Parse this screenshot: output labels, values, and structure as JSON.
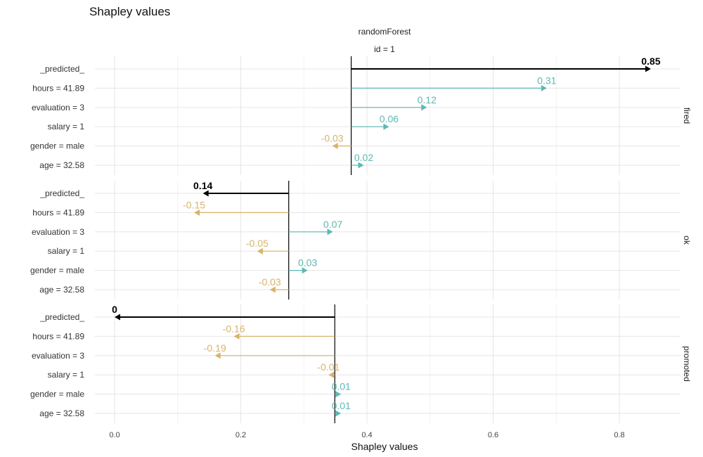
{
  "chart_data": {
    "type": "bar",
    "title": "Shapley values",
    "subtitle": "randomForest",
    "observation": "id = 1",
    "xlabel": "Shapley values",
    "xlim": [
      -0.02,
      0.9
    ],
    "xticks": [
      0.0,
      0.2,
      0.4,
      0.6,
      0.8
    ],
    "xtick_labels": [
      "0.0",
      "0.2",
      "0.4",
      "0.6",
      "0.8"
    ],
    "colors": {
      "positive": "#5cb8b3",
      "negative": "#d7b36b",
      "predicted": "#000000",
      "grid": "#e5e5e5"
    },
    "variables": [
      "_predicted_",
      "hours = 41.89",
      "evaluation = 3",
      "salary = 1",
      "gender = male",
      "age = 32.58"
    ],
    "panels": [
      {
        "name": "fired",
        "baseline": 0.375,
        "predicted": {
          "value": 0.85,
          "label": "0.85"
        },
        "contributions": [
          {
            "variable": "hours = 41.89",
            "value": 0.31,
            "label": "0.31"
          },
          {
            "variable": "evaluation = 3",
            "value": 0.12,
            "label": "0.12"
          },
          {
            "variable": "salary = 1",
            "value": 0.06,
            "label": "0.06"
          },
          {
            "variable": "gender = male",
            "value": -0.03,
            "label": "-0.03"
          },
          {
            "variable": "age = 32.58",
            "value": 0.02,
            "label": "0.02"
          }
        ]
      },
      {
        "name": "ok",
        "baseline": 0.276,
        "predicted": {
          "value": 0.14,
          "label": "0.14"
        },
        "contributions": [
          {
            "variable": "hours = 41.89",
            "value": -0.15,
            "label": "-0.15"
          },
          {
            "variable": "evaluation = 3",
            "value": 0.07,
            "label": "0.07"
          },
          {
            "variable": "salary = 1",
            "value": -0.05,
            "label": "-0.05"
          },
          {
            "variable": "gender = male",
            "value": 0.03,
            "label": "0.03"
          },
          {
            "variable": "age = 32.58",
            "value": -0.03,
            "label": "-0.03"
          }
        ]
      },
      {
        "name": "promoted",
        "baseline": 0.349,
        "predicted": {
          "value": 0.0,
          "label": "0"
        },
        "contributions": [
          {
            "variable": "hours = 41.89",
            "value": -0.16,
            "label": "-0.16"
          },
          {
            "variable": "evaluation = 3",
            "value": -0.19,
            "label": "-0.19"
          },
          {
            "variable": "salary = 1",
            "value": -0.01,
            "label": "-0.01"
          },
          {
            "variable": "gender = male",
            "value": 0.01,
            "label": "0.01"
          },
          {
            "variable": "age = 32.58",
            "value": 0.01,
            "label": "0.01"
          }
        ]
      }
    ]
  }
}
